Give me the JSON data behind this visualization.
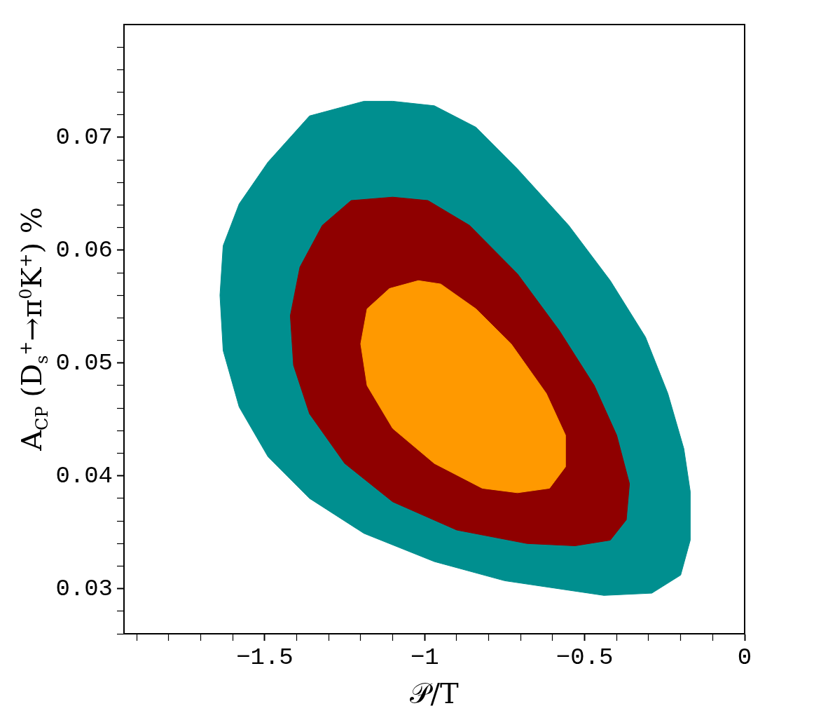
{
  "chart_data": {
    "type": "area",
    "xlabel": "𝒫/T",
    "ylabel": "A$_{CP}$ (D$_{s}$$^{+}$→π$^{0}$K$^{+}$) %",
    "xlim": [
      -1.94,
      0
    ],
    "ylim": [
      0.026,
      0.08
    ],
    "xticks": [
      {
        "value": -1.9,
        "label": null
      },
      {
        "value": -1.8,
        "label": null
      },
      {
        "value": -1.7,
        "label": null
      },
      {
        "value": -1.6,
        "label": null
      },
      -1.5,
      {
        "value": -1.4,
        "label": null
      },
      {
        "value": -1.3,
        "label": null
      },
      {
        "value": -1.2,
        "label": null
      },
      {
        "value": -1.1,
        "label": null
      },
      -1,
      {
        "value": -0.9,
        "label": null
      },
      {
        "value": -0.8,
        "label": null
      },
      {
        "value": -0.7,
        "label": null
      },
      {
        "value": -0.6,
        "label": null
      },
      -0.5,
      {
        "value": -0.4,
        "label": null
      },
      {
        "value": -0.3,
        "label": null
      },
      {
        "value": -0.2,
        "label": null
      },
      {
        "value": -0.1,
        "label": null
      },
      0
    ],
    "yticks": [
      {
        "value": 0.026,
        "label": null
      },
      {
        "value": 0.028,
        "label": null
      },
      0.03,
      {
        "value": 0.032,
        "label": null
      },
      {
        "value": 0.034,
        "label": null
      },
      {
        "value": 0.036,
        "label": null
      },
      {
        "value": 0.038,
        "label": null
      },
      0.04,
      {
        "value": 0.042,
        "label": null
      },
      {
        "value": 0.044,
        "label": null
      },
      {
        "value": 0.046,
        "label": null
      },
      {
        "value": 0.048,
        "label": null
      },
      0.05,
      {
        "value": 0.052,
        "label": null
      },
      {
        "value": 0.054,
        "label": null
      },
      {
        "value": 0.056,
        "label": null
      },
      {
        "value": 0.058,
        "label": null
      },
      0.06,
      {
        "value": 0.062,
        "label": null
      },
      {
        "value": 0.064,
        "label": null
      },
      {
        "value": 0.066,
        "label": null
      },
      {
        "value": 0.068,
        "label": null
      },
      0.07,
      {
        "value": 0.072,
        "label": null
      },
      {
        "value": 0.074,
        "label": null
      },
      {
        "value": 0.076,
        "label": null
      },
      {
        "value": 0.078,
        "label": null
      }
    ],
    "grid": false,
    "legend": false,
    "series": [
      {
        "color": "#008f8f",
        "x": [
          -1.1,
          -1.19,
          -1.36,
          -1.49,
          -1.58,
          -1.63,
          -1.64,
          -1.63,
          -1.58,
          -1.49,
          -1.36,
          -1.19,
          -0.97,
          -0.75,
          -0.44,
          -0.29,
          -0.2,
          -0.17,
          -0.17,
          -0.19,
          -0.24,
          -0.31,
          -0.42,
          -0.55,
          -0.71,
          -0.84,
          -0.97
        ],
        "values": [
          0.0732,
          0.0732,
          0.0719,
          0.0678,
          0.0641,
          0.0604,
          0.056,
          0.0511,
          0.0461,
          0.0417,
          0.038,
          0.0349,
          0.0324,
          0.0307,
          0.0294,
          0.0296,
          0.0312,
          0.0343,
          0.0386,
          0.0424,
          0.0473,
          0.0523,
          0.0573,
          0.0622,
          0.0672,
          0.0709,
          0.0728
        ]
      },
      {
        "color": "#8f0000",
        "x": [
          -1.1,
          -1.23,
          -1.32,
          -1.39,
          -1.42,
          -1.41,
          -1.36,
          -1.25,
          -1.1,
          -0.9,
          -0.68,
          -0.53,
          -0.42,
          -0.37,
          -0.36,
          -0.4,
          -0.47,
          -0.58,
          -0.71,
          -0.86,
          -0.99
        ],
        "values": [
          0.0647,
          0.0644,
          0.0622,
          0.0585,
          0.0542,
          0.0498,
          0.0455,
          0.0411,
          0.0377,
          0.0352,
          0.034,
          0.0338,
          0.0343,
          0.0361,
          0.0393,
          0.0436,
          0.048,
          0.0529,
          0.0579,
          0.0622,
          0.0644
        ]
      },
      {
        "color": "#ff9900",
        "x": [
          -1.02,
          -1.11,
          -1.18,
          -1.2,
          -1.18,
          -1.1,
          -0.97,
          -0.82,
          -0.71,
          -0.61,
          -0.56,
          -0.56,
          -0.62,
          -0.73,
          -0.84,
          -0.95
        ],
        "values": [
          0.0573,
          0.0566,
          0.0548,
          0.0517,
          0.048,
          0.0442,
          0.0411,
          0.0389,
          0.0385,
          0.0389,
          0.0408,
          0.0436,
          0.0473,
          0.0517,
          0.0548,
          0.057
        ]
      }
    ]
  }
}
